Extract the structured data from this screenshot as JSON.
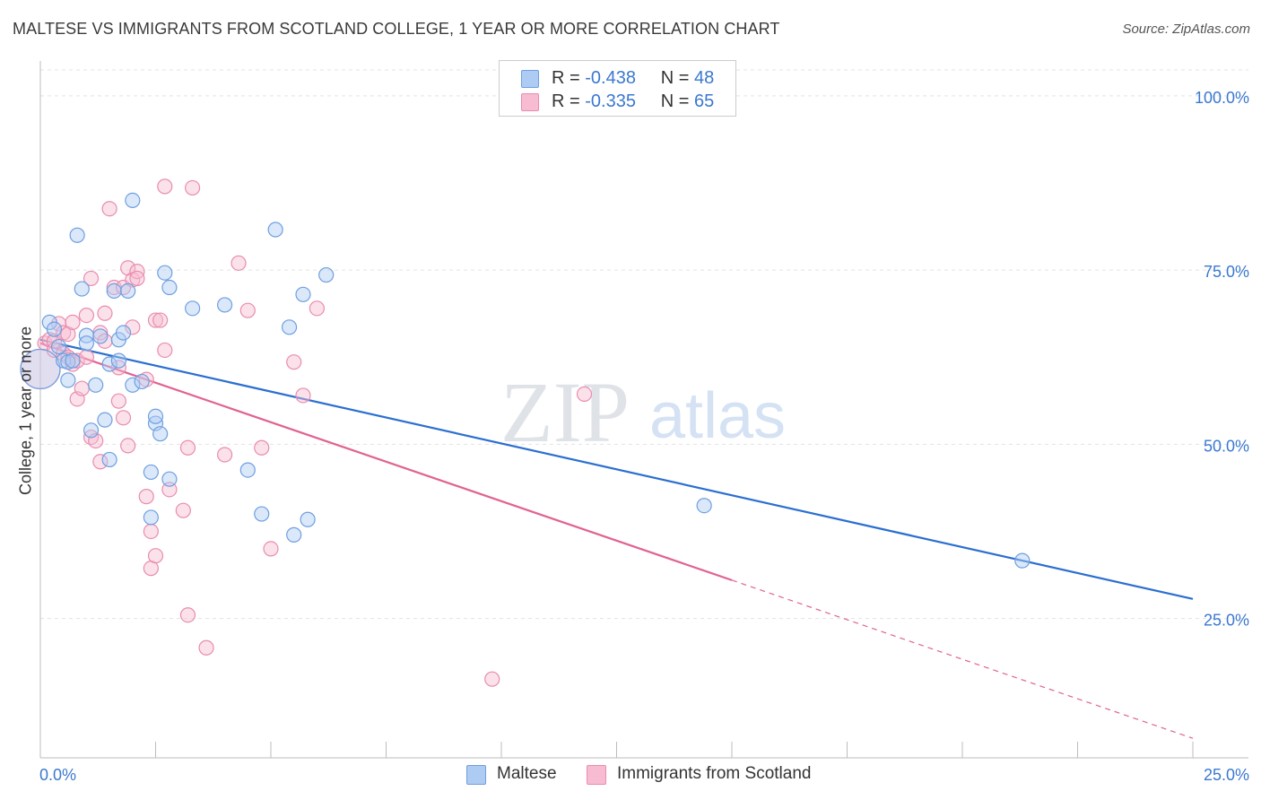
{
  "header": {
    "title": "MALTESE VS IMMIGRANTS FROM SCOTLAND COLLEGE, 1 YEAR OR MORE CORRELATION CHART",
    "source": "Source: ZipAtlas.com"
  },
  "watermark": {
    "zip": "ZIP",
    "atlas": "atlas"
  },
  "legend": [
    {
      "r_label": "R =",
      "r_value": "-0.438",
      "n_label": "N =",
      "n_value": "48"
    },
    {
      "r_label": "R =",
      "r_value": "-0.335",
      "n_label": "N =",
      "n_value": "65"
    }
  ],
  "chart_data": {
    "type": "scatter",
    "title": "MALTESE VS IMMIGRANTS FROM SCOTLAND COLLEGE, 1 YEAR OR MORE CORRELATION CHART",
    "xlabel": "",
    "ylabel": "College, 1 year or more",
    "xlim": [
      0,
      25
    ],
    "ylim": [
      5,
      105
    ],
    "x_tick_labels": [
      "0.0%",
      "25.0%"
    ],
    "y_ticks": [
      25,
      50,
      75,
      100
    ],
    "y_tick_labels": [
      "25.0%",
      "50.0%",
      "75.0%",
      "100.0%"
    ],
    "grid": true,
    "legend_position": "top-center",
    "series": [
      {
        "name": "Maltese",
        "color": "#6e9fe0",
        "fill": "#aecbf3",
        "line_color": "#2b6fd0",
        "trend": {
          "x": [
            0,
            25
          ],
          "y": [
            65.0,
            27.8
          ]
        },
        "points": [
          {
            "x": 0.0,
            "y": 60.8,
            "big": true
          },
          {
            "x": 0.2,
            "y": 67.5
          },
          {
            "x": 0.3,
            "y": 66.5
          },
          {
            "x": 0.4,
            "y": 64.0
          },
          {
            "x": 0.5,
            "y": 62.0
          },
          {
            "x": 0.6,
            "y": 59.2
          },
          {
            "x": 0.6,
            "y": 61.8
          },
          {
            "x": 0.7,
            "y": 62.0
          },
          {
            "x": 0.8,
            "y": 80.0
          },
          {
            "x": 0.9,
            "y": 72.3
          },
          {
            "x": 1.0,
            "y": 65.6
          },
          {
            "x": 1.0,
            "y": 64.5
          },
          {
            "x": 1.1,
            "y": 52.0
          },
          {
            "x": 1.2,
            "y": 58.5
          },
          {
            "x": 1.3,
            "y": 65.5
          },
          {
            "x": 1.4,
            "y": 53.5
          },
          {
            "x": 1.5,
            "y": 61.5
          },
          {
            "x": 1.5,
            "y": 47.8
          },
          {
            "x": 1.6,
            "y": 72.0
          },
          {
            "x": 1.7,
            "y": 65.0
          },
          {
            "x": 1.7,
            "y": 62.0
          },
          {
            "x": 1.8,
            "y": 66.0
          },
          {
            "x": 1.9,
            "y": 72.0
          },
          {
            "x": 2.0,
            "y": 58.5
          },
          {
            "x": 2.0,
            "y": 85.0
          },
          {
            "x": 2.2,
            "y": 59.0
          },
          {
            "x": 2.4,
            "y": 39.5
          },
          {
            "x": 2.4,
            "y": 46.0
          },
          {
            "x": 2.5,
            "y": 53.0
          },
          {
            "x": 2.5,
            "y": 54.0
          },
          {
            "x": 2.6,
            "y": 51.5
          },
          {
            "x": 2.7,
            "y": 74.6
          },
          {
            "x": 2.8,
            "y": 72.5
          },
          {
            "x": 2.8,
            "y": 45.0
          },
          {
            "x": 3.3,
            "y": 69.5
          },
          {
            "x": 4.0,
            "y": 70.0
          },
          {
            "x": 4.5,
            "y": 46.3
          },
          {
            "x": 4.8,
            "y": 40.0
          },
          {
            "x": 5.1,
            "y": 80.8
          },
          {
            "x": 5.4,
            "y": 66.8
          },
          {
            "x": 5.5,
            "y": 37.0
          },
          {
            "x": 5.7,
            "y": 71.5
          },
          {
            "x": 5.8,
            "y": 39.2
          },
          {
            "x": 6.2,
            "y": 74.3
          },
          {
            "x": 14.4,
            "y": 41.2
          },
          {
            "x": 21.3,
            "y": 33.3
          }
        ]
      },
      {
        "name": "Immigrants from Scotland",
        "color": "#e98caf",
        "fill": "#f7bcd1",
        "line_color": "#e06392",
        "trend": {
          "x": [
            0,
            15
          ],
          "y": [
            64.5,
            30.5
          ]
        },
        "trend_dashed": {
          "x": [
            15,
            25
          ],
          "y": [
            30.5,
            7.8
          ]
        },
        "points": [
          {
            "x": 0.0,
            "y": 60.8,
            "big": true
          },
          {
            "x": 0.1,
            "y": 64.5
          },
          {
            "x": 0.2,
            "y": 65.0
          },
          {
            "x": 0.3,
            "y": 63.5
          },
          {
            "x": 0.3,
            "y": 64.8
          },
          {
            "x": 0.4,
            "y": 67.3
          },
          {
            "x": 0.5,
            "y": 66.0
          },
          {
            "x": 0.5,
            "y": 63.0
          },
          {
            "x": 0.6,
            "y": 65.8
          },
          {
            "x": 0.6,
            "y": 62.5
          },
          {
            "x": 0.7,
            "y": 61.5
          },
          {
            "x": 0.7,
            "y": 67.5
          },
          {
            "x": 0.8,
            "y": 62.0
          },
          {
            "x": 0.8,
            "y": 56.5
          },
          {
            "x": 0.9,
            "y": 58.0
          },
          {
            "x": 1.0,
            "y": 62.5
          },
          {
            "x": 1.0,
            "y": 68.5
          },
          {
            "x": 1.1,
            "y": 73.8
          },
          {
            "x": 1.1,
            "y": 51.0
          },
          {
            "x": 1.2,
            "y": 50.5
          },
          {
            "x": 1.3,
            "y": 66.0
          },
          {
            "x": 1.3,
            "y": 47.5
          },
          {
            "x": 1.4,
            "y": 64.8
          },
          {
            "x": 1.4,
            "y": 68.8
          },
          {
            "x": 1.5,
            "y": 83.8
          },
          {
            "x": 1.6,
            "y": 72.5
          },
          {
            "x": 1.7,
            "y": 61.0
          },
          {
            "x": 1.7,
            "y": 56.2
          },
          {
            "x": 1.8,
            "y": 53.8
          },
          {
            "x": 1.8,
            "y": 72.5
          },
          {
            "x": 1.9,
            "y": 49.8
          },
          {
            "x": 1.9,
            "y": 75.3
          },
          {
            "x": 2.0,
            "y": 73.6
          },
          {
            "x": 2.0,
            "y": 66.8
          },
          {
            "x": 2.1,
            "y": 74.8
          },
          {
            "x": 2.1,
            "y": 73.8
          },
          {
            "x": 2.3,
            "y": 42.5
          },
          {
            "x": 2.3,
            "y": 59.3
          },
          {
            "x": 2.4,
            "y": 37.5
          },
          {
            "x": 2.4,
            "y": 32.2
          },
          {
            "x": 2.5,
            "y": 34.0
          },
          {
            "x": 2.5,
            "y": 67.8
          },
          {
            "x": 2.6,
            "y": 67.8
          },
          {
            "x": 2.7,
            "y": 63.5
          },
          {
            "x": 2.7,
            "y": 87.0
          },
          {
            "x": 2.8,
            "y": 43.5
          },
          {
            "x": 3.1,
            "y": 40.5
          },
          {
            "x": 3.2,
            "y": 25.5
          },
          {
            "x": 3.2,
            "y": 49.5
          },
          {
            "x": 3.3,
            "y": 86.8
          },
          {
            "x": 3.6,
            "y": 20.8
          },
          {
            "x": 4.0,
            "y": 48.5
          },
          {
            "x": 4.3,
            "y": 76.0
          },
          {
            "x": 4.5,
            "y": 69.2
          },
          {
            "x": 4.8,
            "y": 49.5
          },
          {
            "x": 5.0,
            "y": 35.0
          },
          {
            "x": 5.5,
            "y": 61.8
          },
          {
            "x": 5.7,
            "y": 57.0
          },
          {
            "x": 6.0,
            "y": 69.5
          },
          {
            "x": 11.8,
            "y": 57.2
          },
          {
            "x": 9.8,
            "y": 16.3
          }
        ]
      }
    ]
  }
}
